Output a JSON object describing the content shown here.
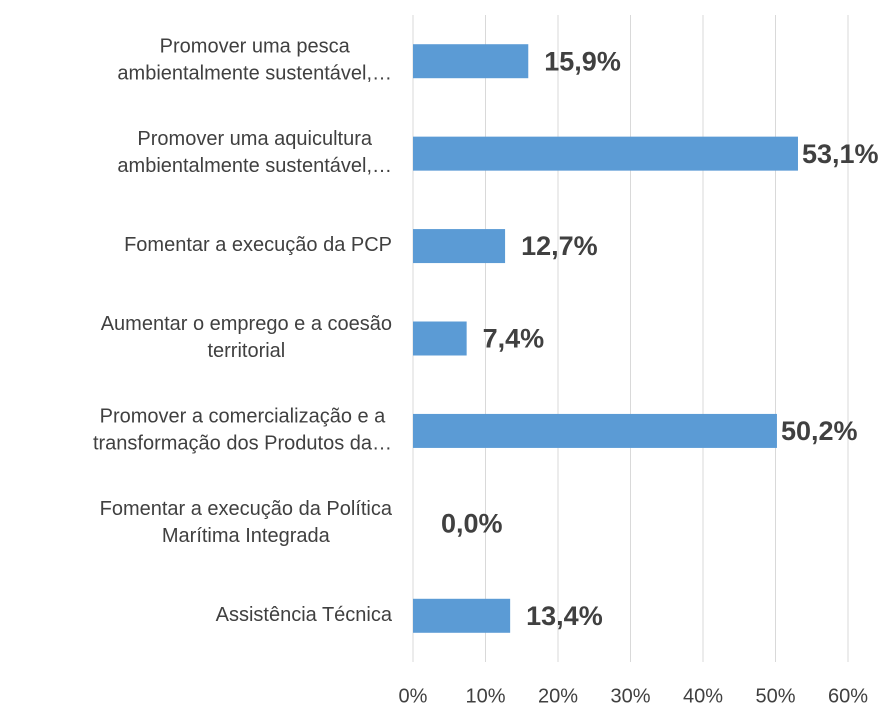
{
  "chart_data": {
    "type": "bar",
    "orientation": "horizontal",
    "categories": [
      "Promover uma pesca\nambientalmente sustentável,…",
      "Promover uma aquicultura\nambientalmente sustentável,…",
      "Fomentar a execução da PCP",
      "Aumentar o emprego e a coesão\nterritorial",
      "Promover a comercialização e a\ntransformação dos Produtos da…",
      "Fomentar a execução da Política\nMarítima Integrada",
      "Assistência Técnica"
    ],
    "values": [
      15.9,
      53.1,
      12.7,
      7.4,
      50.2,
      0.0,
      13.4
    ],
    "value_labels": [
      "15,9%",
      "53,1%",
      "12,7%",
      "7,4%",
      "50,2%",
      "0,0%",
      "13,4%"
    ],
    "color": "#5b9bd5",
    "xlim": [
      0,
      60
    ],
    "xticks": [
      {
        "value": 0,
        "label": "0%"
      },
      {
        "value": 10,
        "label": "10%"
      },
      {
        "value": 20,
        "label": "20%"
      },
      {
        "value": 30,
        "label": "30%"
      },
      {
        "value": 40,
        "label": "40%"
      },
      {
        "value": 50,
        "label": "50%"
      },
      {
        "value": 60,
        "label": "60%"
      }
    ],
    "grid": true
  }
}
